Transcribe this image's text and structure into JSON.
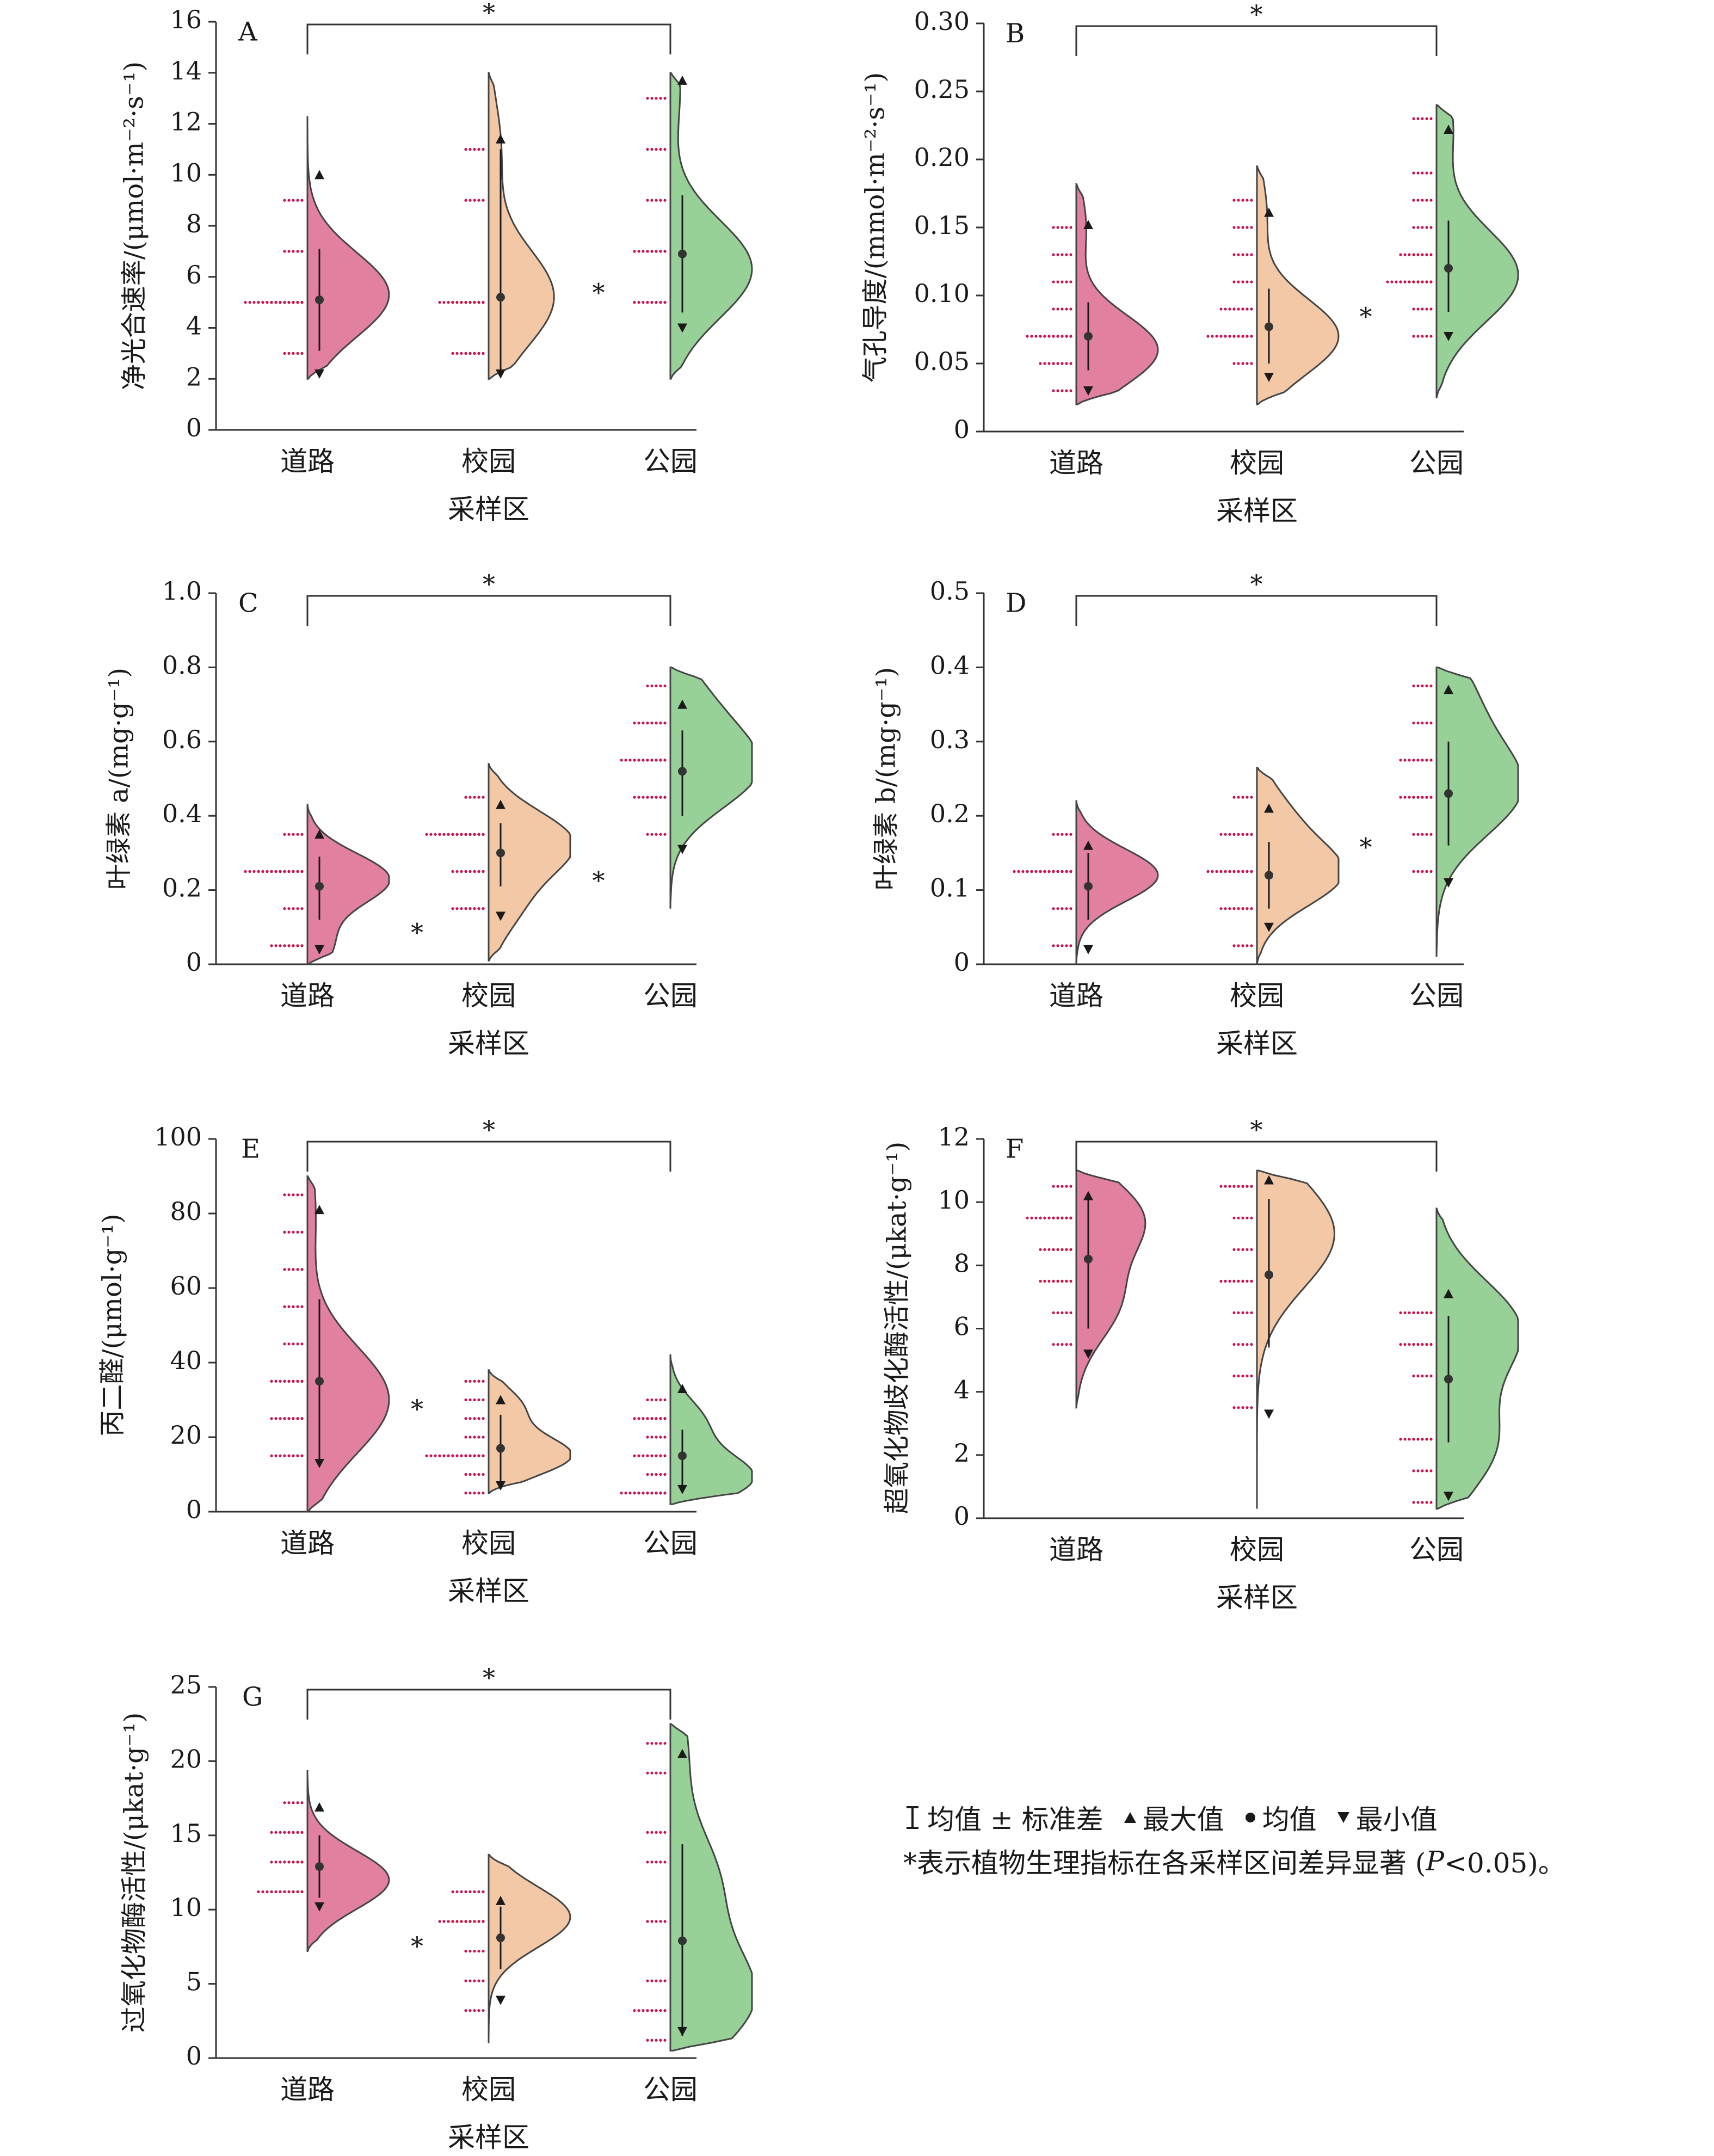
{
  "figure": {
    "xlabel": "采样区",
    "categories": [
      "道路",
      "校园",
      "公园"
    ],
    "colors": {
      "道路": "#e1809f",
      "校园": "#f2c8a7",
      "公园": "#98d197",
      "dot": "#c9154a",
      "outline": "#444444"
    }
  },
  "chart_data": [
    {
      "type": "violin",
      "panel": "A",
      "ylabel": "净光合速率/(μmol·m⁻²·s⁻¹)",
      "ylim": [
        0,
        16
      ],
      "yticks": [
        "0",
        "2",
        "4",
        "6",
        "8",
        "10",
        "12",
        "14",
        "16"
      ],
      "yticks_values": [
        0,
        2,
        4,
        6,
        8,
        10,
        12,
        14,
        16
      ],
      "categories": [
        "道路",
        "校园",
        "公园"
      ],
      "series": [
        {
          "category": "道路",
          "mean": 5.1,
          "sd_low": 3.1,
          "sd_high": 7.1,
          "max": 10.0,
          "min": 2.2,
          "range": [
            2,
            12.3
          ],
          "peaks": [
            [
              5.3,
              1.0
            ]
          ],
          "dots": [
            3,
            5,
            5,
            5,
            5,
            7,
            9
          ]
        },
        {
          "category": "校园",
          "mean": 5.2,
          "sd_low": 2.3,
          "sd_high": 11.0,
          "max": 11.4,
          "min": 2.2,
          "range": [
            2,
            14
          ],
          "peaks": [
            [
              5.2,
              0.8
            ],
            [
              11,
              0.15
            ]
          ],
          "dots": [
            3,
            3,
            5,
            5,
            5,
            9,
            11
          ]
        },
        {
          "category": "公园",
          "mean": 6.9,
          "sd_low": 4.6,
          "sd_high": 9.2,
          "max": 13.7,
          "min": 4.0,
          "range": [
            2,
            14
          ],
          "peaks": [
            [
              6.3,
              1.0
            ],
            [
              13.5,
              0.12
            ]
          ],
          "dots": [
            5,
            5,
            7,
            7,
            9,
            11,
            13
          ]
        }
      ],
      "pair_sig": [
        "*"
      ],
      "between_sig": [
        {
          "pos": "校园-公园",
          "y": 5.3,
          "label": "*"
        }
      ]
    },
    {
      "type": "violin",
      "panel": "B",
      "ylabel": "气孔导度/(mmol·m⁻²·s⁻¹)",
      "ylim": [
        0,
        0.3
      ],
      "yticks": [
        "0",
        "0.05",
        "0.10",
        "0.15",
        "0.20",
        "0.25",
        "0.30"
      ],
      "yticks_values": [
        0,
        0.05,
        0.1,
        0.15,
        0.2,
        0.25,
        0.3
      ],
      "categories": [
        "道路",
        "校园",
        "公园"
      ],
      "series": [
        {
          "category": "道路",
          "mean": 0.07,
          "sd_low": 0.045,
          "sd_high": 0.095,
          "max": 0.152,
          "min": 0.03,
          "range": [
            0.02,
            0.182
          ],
          "peaks": [
            [
              0.06,
              1.0
            ],
            [
              0.15,
              0.12
            ]
          ],
          "dots": [
            0.03,
            0.05,
            0.05,
            0.07,
            0.07,
            0.07,
            0.09,
            0.11,
            0.13,
            0.15
          ]
        },
        {
          "category": "校园",
          "mean": 0.077,
          "sd_low": 0.05,
          "sd_high": 0.105,
          "max": 0.161,
          "min": 0.04,
          "range": [
            0.02,
            0.195
          ],
          "peaks": [
            [
              0.07,
              1.0
            ],
            [
              0.16,
              0.12
            ]
          ],
          "dots": [
            0.05,
            0.07,
            0.07,
            0.07,
            0.09,
            0.09,
            0.11,
            0.13,
            0.15,
            0.17
          ]
        },
        {
          "category": "公园",
          "mean": 0.12,
          "sd_low": 0.088,
          "sd_high": 0.155,
          "max": 0.222,
          "min": 0.07,
          "range": [
            0.025,
            0.24
          ],
          "peaks": [
            [
              0.115,
              1.0
            ],
            [
              0.225,
              0.2
            ]
          ],
          "dots": [
            0.07,
            0.09,
            0.11,
            0.11,
            0.11,
            0.13,
            0.13,
            0.15,
            0.17,
            0.19,
            0.23
          ]
        }
      ],
      "pair_sig": [
        "*"
      ],
      "between_sig": [
        {
          "pos": "校园-公园",
          "y": 0.083,
          "label": "*"
        }
      ]
    },
    {
      "type": "violin",
      "panel": "C",
      "ylabel": "叶绿素 a/(mg·g⁻¹)",
      "ylim": [
        0,
        1.0
      ],
      "yticks": [
        "0",
        "0.2",
        "0.4",
        "0.6",
        "0.8",
        "1.0"
      ],
      "yticks_values": [
        0,
        0.2,
        0.4,
        0.6,
        0.8,
        1.0
      ],
      "categories": [
        "道路",
        "校园",
        "公园"
      ],
      "series": [
        {
          "category": "道路",
          "mean": 0.21,
          "sd_low": 0.12,
          "sd_high": 0.29,
          "max": 0.35,
          "min": 0.04,
          "range": [
            0,
            0.43
          ],
          "peaks": [
            [
              0.23,
              1.0
            ],
            [
              0.05,
              0.3
            ]
          ],
          "dots": [
            0.05,
            0.05,
            0.15,
            0.25,
            0.25,
            0.25,
            0.25,
            0.35
          ]
        },
        {
          "category": "校园",
          "mean": 0.3,
          "sd_low": 0.21,
          "sd_high": 0.38,
          "max": 0.43,
          "min": 0.13,
          "range": [
            0.01,
            0.54
          ],
          "peaks": [
            [
              0.33,
              1.0
            ],
            [
              0.16,
              0.35
            ]
          ],
          "dots": [
            0.15,
            0.15,
            0.25,
            0.25,
            0.35,
            0.35,
            0.35,
            0.35,
            0.45
          ]
        },
        {
          "category": "公园",
          "mean": 0.52,
          "sd_low": 0.4,
          "sd_high": 0.63,
          "max": 0.7,
          "min": 0.31,
          "range": [
            0.15,
            0.8
          ],
          "peaks": [
            [
              0.52,
              1.0
            ],
            [
              0.7,
              0.4
            ]
          ],
          "dots": [
            0.35,
            0.45,
            0.45,
            0.55,
            0.55,
            0.55,
            0.65,
            0.65,
            0.75
          ]
        }
      ],
      "pair_sig": [
        "*"
      ],
      "between_sig": [
        {
          "pos": "道路-校园",
          "y": 0.08,
          "label": "*"
        },
        {
          "pos": "校园-公园",
          "y": 0.22,
          "label": "*"
        }
      ]
    },
    {
      "type": "violin",
      "panel": "D",
      "ylabel": "叶绿素 b/(mg·g⁻¹)",
      "ylim": [
        0,
        0.5
      ],
      "yticks": [
        "0",
        "0.1",
        "0.2",
        "0.3",
        "0.4",
        "0.5"
      ],
      "yticks_values": [
        0,
        0.1,
        0.2,
        0.3,
        0.4,
        0.5
      ],
      "categories": [
        "道路",
        "校园",
        "公园"
      ],
      "series": [
        {
          "category": "道路",
          "mean": 0.105,
          "sd_low": 0.06,
          "sd_high": 0.15,
          "max": 0.16,
          "min": 0.02,
          "range": [
            0,
            0.22
          ],
          "peaks": [
            [
              0.12,
              1.0
            ]
          ],
          "dots": [
            0.025,
            0.075,
            0.125,
            0.125,
            0.125,
            0.125,
            0.175
          ]
        },
        {
          "category": "校园",
          "mean": 0.12,
          "sd_low": 0.075,
          "sd_high": 0.165,
          "max": 0.21,
          "min": 0.05,
          "range": [
            0,
            0.265
          ],
          "peaks": [
            [
              0.12,
              1.0
            ],
            [
              0.2,
              0.35
            ]
          ],
          "dots": [
            0.025,
            0.075,
            0.075,
            0.125,
            0.125,
            0.125,
            0.175,
            0.175,
            0.225
          ]
        },
        {
          "category": "公园",
          "mean": 0.23,
          "sd_low": 0.16,
          "sd_high": 0.3,
          "max": 0.37,
          "min": 0.11,
          "range": [
            0.01,
            0.4
          ],
          "peaks": [
            [
              0.235,
              1.0
            ],
            [
              0.36,
              0.4
            ]
          ],
          "dots": [
            0.125,
            0.175,
            0.225,
            0.225,
            0.275,
            0.275,
            0.325,
            0.375
          ]
        }
      ],
      "pair_sig": [
        "*"
      ],
      "between_sig": [
        {
          "pos": "校园-公园",
          "y": 0.155,
          "label": "*"
        }
      ]
    },
    {
      "type": "violin",
      "panel": "E",
      "ylabel": "丙二醛/(μmol·g⁻¹)",
      "ylim": [
        0,
        100
      ],
      "yticks": [
        "0",
        "20",
        "40",
        "60",
        "80",
        "100"
      ],
      "yticks_values": [
        0,
        20,
        40,
        60,
        80,
        100
      ],
      "categories": [
        "道路",
        "校园",
        "公园"
      ],
      "series": [
        {
          "category": "道路",
          "mean": 35,
          "sd_low": 13,
          "sd_high": 57,
          "max": 81,
          "min": 13,
          "range": [
            0,
            90
          ],
          "peaks": [
            [
              30,
              1.0
            ],
            [
              80,
              0.1
            ]
          ],
          "dots": [
            15,
            15,
            25,
            25,
            35,
            35,
            45,
            55,
            65,
            75,
            85
          ]
        },
        {
          "category": "校园",
          "mean": 17,
          "sd_low": 8,
          "sd_high": 26,
          "max": 30,
          "min": 7,
          "range": [
            5,
            38
          ],
          "peaks": [
            [
              15,
              1.0
            ],
            [
              28,
              0.4
            ]
          ],
          "dots": [
            5,
            10,
            15,
            15,
            15,
            15,
            20,
            25,
            30,
            35
          ]
        },
        {
          "category": "公园",
          "mean": 15,
          "sd_low": 7,
          "sd_high": 22,
          "max": 33,
          "min": 6,
          "range": [
            2,
            42
          ],
          "peaks": [
            [
              9,
              1.0
            ],
            [
              24,
              0.4
            ]
          ],
          "dots": [
            5,
            5,
            5,
            10,
            15,
            15,
            20,
            25,
            25,
            30
          ]
        }
      ],
      "pair_sig": [
        "*"
      ],
      "between_sig": [
        {
          "pos": "道路-校园",
          "y": 27,
          "label": "*"
        }
      ]
    },
    {
      "type": "violin",
      "panel": "F",
      "ylabel": "超氧化物歧化酶活性/(μkat·g⁻¹)",
      "ylim": [
        0,
        12
      ],
      "yticks": [
        "0",
        "2",
        "4",
        "6",
        "8",
        "10",
        "12"
      ],
      "yticks_values": [
        0,
        2,
        4,
        6,
        8,
        10,
        12
      ],
      "categories": [
        "道路",
        "校园",
        "公园"
      ],
      "series": [
        {
          "category": "道路",
          "mean": 8.2,
          "sd_low": 6.0,
          "sd_high": 10.3,
          "max": 10.2,
          "min": 5.2,
          "range": [
            3.5,
            11
          ],
          "peaks": [
            [
              9.5,
              0.8
            ],
            [
              6.8,
              0.5
            ]
          ],
          "dots": [
            5.5,
            6.5,
            7.5,
            7.5,
            8.5,
            8.5,
            9.5,
            9.5,
            9.5,
            10.5
          ]
        },
        {
          "category": "校园",
          "mean": 7.7,
          "sd_low": 5.4,
          "sd_high": 10.1,
          "max": 10.7,
          "min": 3.3,
          "range": [
            0.3,
            11
          ],
          "peaks": [
            [
              9.0,
              0.95
            ]
          ],
          "dots": [
            3.5,
            4.5,
            5.5,
            6.5,
            7.5,
            7.5,
            8.5,
            9.5,
            10.5,
            10.5
          ]
        },
        {
          "category": "公园",
          "mean": 4.4,
          "sd_low": 2.4,
          "sd_high": 6.4,
          "max": 7.1,
          "min": 0.7,
          "range": [
            0.3,
            9.8
          ],
          "peaks": [
            [
              6.0,
              1.0
            ],
            [
              2.3,
              0.7
            ]
          ],
          "dots": [
            0.5,
            1.5,
            2.5,
            2.5,
            4.5,
            5.5,
            5.5,
            6.5,
            6.5
          ]
        }
      ],
      "pair_sig": [
        "*"
      ],
      "between_sig": []
    },
    {
      "type": "violin",
      "panel": "G",
      "ylabel": "过氧化物酶活性/(μkat·g⁻¹)",
      "ylim": [
        0,
        25
      ],
      "yticks": [
        "0",
        "5",
        "10",
        "15",
        "20",
        "25"
      ],
      "yticks_values": [
        0,
        5,
        10,
        15,
        20,
        25
      ],
      "categories": [
        "道路",
        "校园",
        "公园"
      ],
      "series": [
        {
          "category": "道路",
          "mean": 12.9,
          "sd_low": 10.8,
          "sd_high": 15.0,
          "max": 16.9,
          "min": 10.2,
          "range": [
            7.2,
            19.4
          ],
          "peaks": [
            [
              12.0,
              1.0
            ]
          ],
          "dots": [
            11.2,
            11.2,
            11.2,
            13.2,
            13.2,
            15.2,
            15.2,
            17.2
          ]
        },
        {
          "category": "校园",
          "mean": 8.1,
          "sd_low": 6.0,
          "sd_high": 10.2,
          "max": 10.6,
          "min": 3.9,
          "range": [
            1.0,
            13.7
          ],
          "peaks": [
            [
              9.5,
              1.0
            ]
          ],
          "dots": [
            3.2,
            5.2,
            7.2,
            9.2,
            9.2,
            9.2,
            11.2,
            11.2
          ]
        },
        {
          "category": "公园",
          "mean": 7.9,
          "sd_low": 1.5,
          "sd_high": 14.4,
          "max": 20.5,
          "min": 1.8,
          "range": [
            0.5,
            22.5
          ],
          "peaks": [
            [
              4.0,
              1.0
            ],
            [
              12.0,
              0.55
            ],
            [
              21.0,
              0.2
            ]
          ],
          "dots": [
            1.2,
            3.2,
            3.2,
            5.2,
            9.2,
            13.2,
            15.2,
            19.2,
            21.2
          ]
        }
      ],
      "pair_sig": [
        "*"
      ],
      "between_sig": [
        {
          "pos": "道路-校园",
          "y": 7.4,
          "label": "*"
        }
      ]
    }
  ],
  "legend": {
    "items": [
      {
        "icon": "errorbar-icon",
        "label": "均值 ± 标准差"
      },
      {
        "icon": "triangle-up-icon",
        "label": "最大值"
      },
      {
        "icon": "dot-icon",
        "label": "均值"
      },
      {
        "icon": "triangle-down-icon",
        "label": "最小值"
      }
    ],
    "note_prefix": "*表示植物生理指标在各采样区间差异显著 (",
    "note_p": "P",
    "note_suffix": "<0.05)。"
  }
}
